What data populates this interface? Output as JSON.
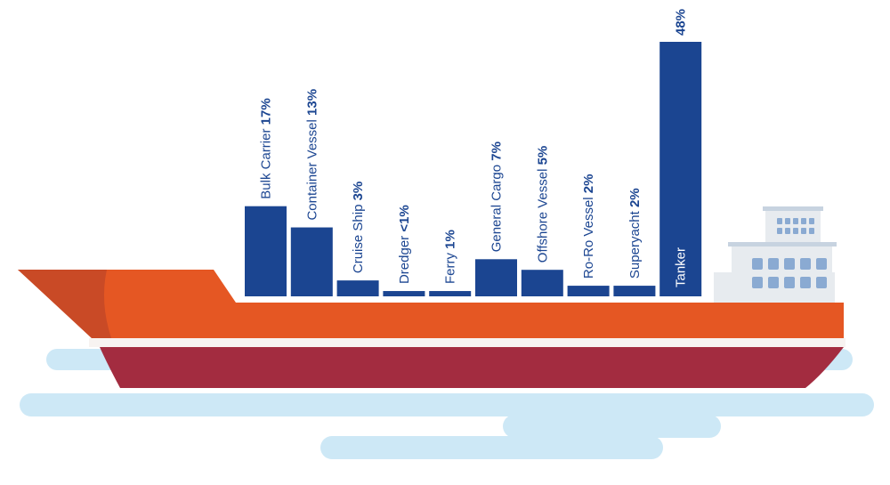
{
  "colors": {
    "bar": "#1b4591",
    "hull_orange": "#e55723",
    "hull_red": "#a32c40",
    "hull_shadow": "#c94a26",
    "water": "#cde8f6",
    "bridge_light": "#e7ebef",
    "bridge_mid": "#d9dee4",
    "window": "#8aaad2"
  },
  "chart_data": {
    "type": "bar",
    "categories": [
      "Bulk Carrier",
      "Container Vessel",
      "Cruise Ship",
      "Dredger",
      "Ferry",
      "General Cargo",
      "Offshore Vessel",
      "Ro-Ro Vessel",
      "Superyacht",
      "Tanker"
    ],
    "values": [
      17,
      13,
      3,
      1,
      1,
      7,
      5,
      2,
      2,
      48
    ],
    "value_labels": [
      "17%",
      "13%",
      "3%",
      "<1%",
      "1%",
      "7%",
      "5%",
      "2%",
      "2%",
      "48%"
    ],
    "unit": "%",
    "title": "",
    "xlabel": "",
    "ylabel": "",
    "ylim": [
      0,
      48
    ]
  }
}
